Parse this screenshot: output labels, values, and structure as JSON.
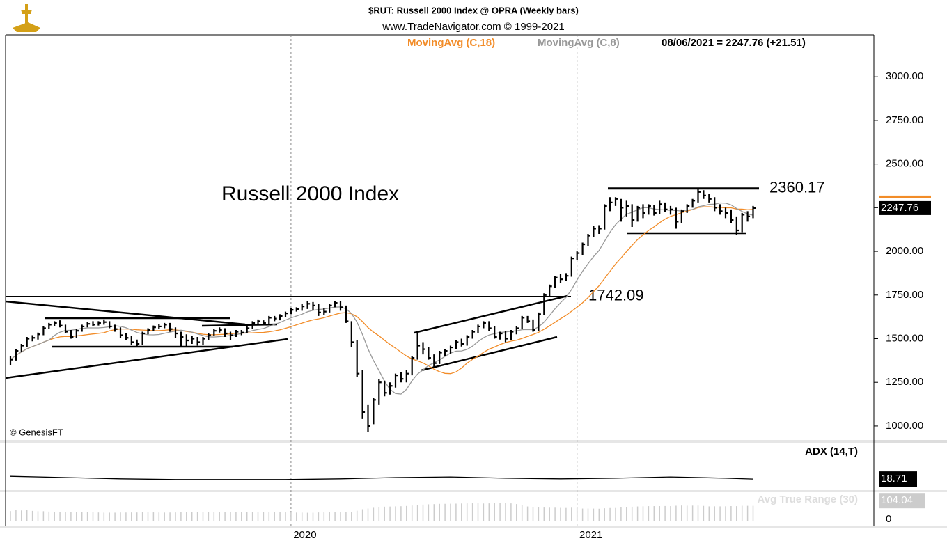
{
  "chart_data": {
    "type": "ohlc",
    "title": "$RUT:  Russell 2000 Index @ OPRA  (Weekly bars)",
    "subtitle": "www.TradeNavigator.com © 1999-2021",
    "annotation": "Russell 2000 Index",
    "credit": "© GenesisFT",
    "legend": [
      {
        "name": "MovingAvg (C,18)",
        "color": "#f28c28",
        "period": 18
      },
      {
        "name": "MovingAvg (C,8)",
        "color": "#999999",
        "period": 8
      }
    ],
    "last_label": "08/06/2021 = 2247.76 (+21.51)",
    "last_price": {
      "value": 2247.76,
      "label": "2247.76"
    },
    "levels": [
      {
        "value": 1742.09,
        "label": "1742.09"
      },
      {
        "value": 2360.17,
        "label": "2360.17"
      }
    ],
    "ylim": [
      920,
      3240
    ],
    "yticks": [
      {
        "value": 1000,
        "label": "1000.00"
      },
      {
        "value": 1250,
        "label": "1250.00"
      },
      {
        "value": 1500,
        "label": "1500.00"
      },
      {
        "value": 1750,
        "label": "1750.00"
      },
      {
        "value": 2000,
        "label": "2000.00"
      },
      {
        "value": 2250,
        "label": "2250.00"
      },
      {
        "value": 2500,
        "label": "2500.00"
      },
      {
        "value": 2750,
        "label": "2750.00"
      },
      {
        "value": 3000,
        "label": "3000.00"
      }
    ],
    "xticks": [
      {
        "value": 51,
        "label": "2020"
      },
      {
        "value": 103,
        "label": "2021"
      }
    ],
    "close": [
      1380,
      1430,
      1460,
      1500,
      1505,
      1525,
      1560,
      1580,
      1590,
      1575,
      1540,
      1510,
      1545,
      1570,
      1585,
      1580,
      1590,
      1595,
      1570,
      1555,
      1520,
      1505,
      1480,
      1470,
      1530,
      1550,
      1565,
      1570,
      1580,
      1555,
      1530,
      1510,
      1490,
      1500,
      1480,
      1500,
      1520,
      1545,
      1550,
      1530,
      1520,
      1540,
      1535,
      1560,
      1590,
      1600,
      1590,
      1620,
      1615,
      1630,
      1645,
      1665,
      1670,
      1685,
      1700,
      1690,
      1650,
      1655,
      1690,
      1705,
      1680,
      1600,
      1480,
      1300,
      1080,
      1000,
      1150,
      1250,
      1190,
      1230,
      1290,
      1270,
      1300,
      1390,
      1460,
      1440,
      1390,
      1360,
      1420,
      1430,
      1450,
      1480,
      1470,
      1510,
      1540,
      1570,
      1590,
      1560,
      1510,
      1530,
      1500,
      1540,
      1560,
      1620,
      1600,
      1550,
      1640,
      1750,
      1800,
      1850,
      1840,
      1860,
      1960,
      1990,
      2040,
      2090,
      2130,
      2130,
      2260,
      2280,
      2300,
      2250,
      2260,
      2180,
      2250,
      2220,
      2260,
      2220,
      2270,
      2240,
      2240,
      2170,
      2230,
      2260,
      2290,
      2340,
      2320,
      2300,
      2250,
      2230,
      2220,
      2180,
      2120,
      2210,
      2200,
      2247.76
    ],
    "high": [
      1400,
      1440,
      1470,
      1510,
      1520,
      1535,
      1570,
      1590,
      1600,
      1605,
      1580,
      1550,
      1555,
      1580,
      1595,
      1600,
      1600,
      1610,
      1600,
      1580,
      1565,
      1530,
      1515,
      1495,
      1540,
      1560,
      1575,
      1585,
      1590,
      1590,
      1565,
      1540,
      1525,
      1515,
      1510,
      1510,
      1530,
      1555,
      1565,
      1560,
      1540,
      1550,
      1550,
      1570,
      1600,
      1610,
      1605,
      1630,
      1630,
      1640,
      1655,
      1675,
      1680,
      1700,
      1715,
      1710,
      1700,
      1675,
      1700,
      1715,
      1715,
      1690,
      1600,
      1490,
      1320,
      1120,
      1160,
      1270,
      1260,
      1250,
      1300,
      1310,
      1320,
      1400,
      1530,
      1480,
      1450,
      1410,
      1430,
      1440,
      1460,
      1490,
      1500,
      1520,
      1550,
      1580,
      1600,
      1600,
      1570,
      1540,
      1545,
      1550,
      1570,
      1630,
      1630,
      1610,
      1650,
      1760,
      1810,
      1860,
      1870,
      1875,
      1970,
      2000,
      2050,
      2100,
      2145,
      2150,
      2270,
      2310,
      2310,
      2300,
      2290,
      2270,
      2260,
      2270,
      2270,
      2265,
      2290,
      2280,
      2260,
      2250,
      2240,
      2270,
      2300,
      2360,
      2350,
      2330,
      2310,
      2270,
      2250,
      2240,
      2200,
      2220,
      2230,
      2260
    ],
    "low": [
      1350,
      1375,
      1425,
      1450,
      1485,
      1495,
      1520,
      1555,
      1570,
      1565,
      1530,
      1500,
      1505,
      1540,
      1565,
      1570,
      1575,
      1580,
      1560,
      1540,
      1505,
      1490,
      1465,
      1455,
      1465,
      1525,
      1545,
      1555,
      1560,
      1540,
      1505,
      1455,
      1455,
      1470,
      1460,
      1465,
      1490,
      1515,
      1535,
      1510,
      1490,
      1510,
      1520,
      1530,
      1555,
      1580,
      1580,
      1585,
      1600,
      1605,
      1625,
      1640,
      1655,
      1660,
      1670,
      1665,
      1630,
      1635,
      1650,
      1680,
      1660,
      1590,
      1450,
      1280,
      1040,
      966,
      1010,
      1120,
      1170,
      1180,
      1220,
      1250,
      1250,
      1290,
      1380,
      1410,
      1380,
      1340,
      1355,
      1400,
      1415,
      1440,
      1455,
      1460,
      1500,
      1530,
      1560,
      1545,
      1500,
      1495,
      1480,
      1490,
      1525,
      1555,
      1590,
      1540,
      1545,
      1635,
      1740,
      1790,
      1820,
      1830,
      1855,
      1950,
      1980,
      2030,
      2080,
      2100,
      2125,
      2230,
      2260,
      2170,
      2200,
      2140,
      2170,
      2190,
      2210,
      2205,
      2215,
      2225,
      2210,
      2130,
      2160,
      2220,
      2250,
      2280,
      2300,
      2280,
      2230,
      2210,
      2190,
      2160,
      2095,
      2110,
      2170,
      2190
    ],
    "adx": {
      "name": "ADX (14,T)",
      "last": {
        "value": 18.71,
        "label": "18.71"
      },
      "ylim": [
        0,
        72
      ],
      "x": [
        0,
        10,
        20,
        30,
        40,
        50,
        60,
        70,
        80,
        90,
        100,
        110,
        120,
        130,
        135
      ],
      "values": [
        23,
        21,
        19,
        18,
        18,
        18,
        19,
        21,
        22,
        20,
        19,
        20,
        22,
        20,
        18.71
      ]
    },
    "atr": {
      "name": "Avg True Range (30)",
      "last": {
        "value": 104.04,
        "label": "104.04"
      },
      "ylim": [
        0,
        130
      ],
      "yticks": [
        0
      ]
    }
  }
}
